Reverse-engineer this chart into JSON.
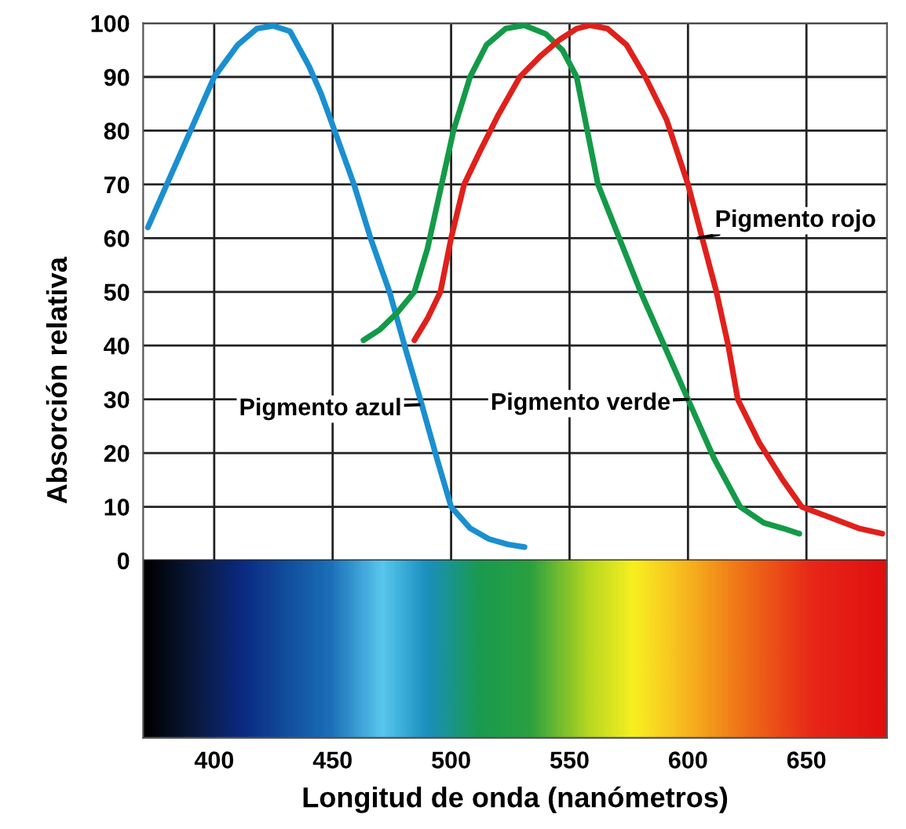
{
  "chart_data": {
    "type": "line",
    "xlabel": "Longitud de onda (nanómetros)",
    "ylabel": "Absorción relativa",
    "xlim": [
      370,
      684
    ],
    "xticks": [
      400,
      450,
      500,
      550,
      600,
      650
    ],
    "ylim": [
      -33,
      100
    ],
    "yticks": [
      0,
      10,
      20,
      30,
      40,
      50,
      60,
      70,
      80,
      90,
      100
    ],
    "grid": true,
    "marker": "none",
    "line_style": "solid",
    "series": [
      {
        "color": "#1a8fd0",
        "x": [
          372,
          380,
          390,
          400,
          410,
          418,
          425,
          432,
          440,
          445,
          450,
          459,
          466,
          474,
          481,
          487,
          494,
          500,
          508,
          516,
          524,
          531
        ],
        "values": [
          62,
          70,
          80,
          90,
          96,
          99,
          99.5,
          98.5,
          92,
          87,
          81,
          70,
          60,
          50,
          39,
          30,
          19,
          10,
          6,
          4,
          3,
          2.5
        ]
      },
      {
        "color": "#139a48",
        "x": [
          463,
          470,
          477,
          484.5,
          490,
          495,
          501,
          508,
          515,
          523,
          531,
          540,
          547,
          553,
          562,
          571,
          580,
          590,
          600,
          611,
          622,
          632,
          640,
          647
        ],
        "values": [
          41,
          43,
          46,
          50,
          58,
          68,
          80,
          90,
          96,
          99,
          99.6,
          98,
          95,
          90,
          70,
          60,
          50,
          40,
          30,
          19,
          10,
          7,
          6,
          5
        ]
      },
      {
        "color": "#e0201b",
        "x": [
          484.5,
          490,
          495.5,
          500,
          505.5,
          512,
          520,
          529,
          538,
          546,
          553,
          558.5,
          566,
          574,
          582,
          591,
          600,
          606,
          612,
          617,
          621,
          630,
          640,
          648,
          660,
          672,
          682
        ],
        "values": [
          41,
          45,
          50,
          60,
          70,
          76,
          83,
          90,
          94,
          97,
          99,
          99.6,
          99,
          96,
          90,
          82,
          70,
          60,
          50,
          40,
          30,
          22,
          15,
          10,
          8,
          6,
          5
        ]
      }
    ],
    "annotations": [
      {
        "text": "Pigmento azul",
        "x": 486.5,
        "y": 29
      },
      {
        "text": "Pigmento verde",
        "x": 600,
        "y": 30
      },
      {
        "text": "Pigmento rojo",
        "x": 604,
        "y": 60
      }
    ]
  }
}
